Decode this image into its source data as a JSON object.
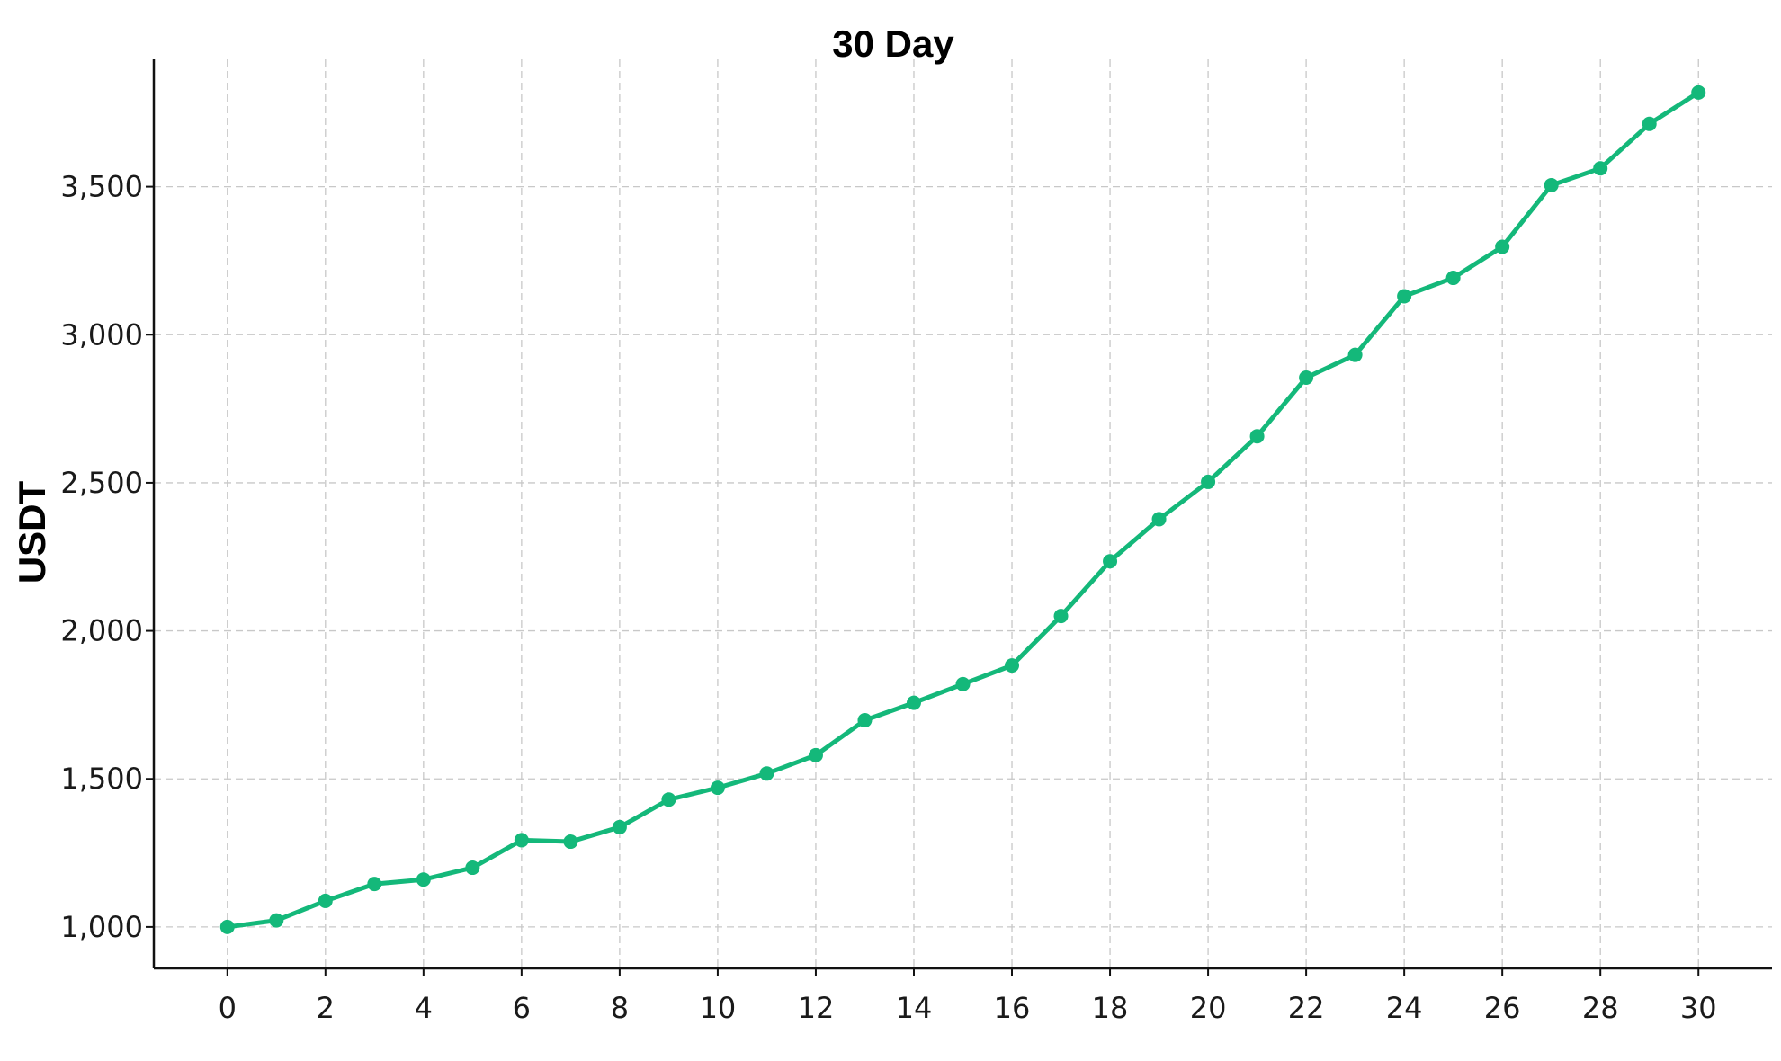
{
  "chart_data": {
    "type": "line",
    "title": "30 Day",
    "xlabel": "",
    "ylabel": "USDT",
    "xlim": [
      -1.5,
      31.5
    ],
    "ylim": [
      860,
      3930
    ],
    "xticks": [
      0,
      2,
      4,
      6,
      8,
      10,
      12,
      14,
      16,
      18,
      20,
      22,
      24,
      26,
      28,
      30
    ],
    "yticks": [
      1000,
      1500,
      2000,
      2500,
      3000,
      3500
    ],
    "ytick_labels": [
      "1,000",
      "1,500",
      "2,000",
      "2,500",
      "3,000",
      "3,500"
    ],
    "grid": true,
    "color": "#14b87a",
    "series": [
      {
        "x": [
          0,
          1,
          2,
          3,
          4,
          5,
          6,
          7,
          8,
          9,
          10,
          11,
          12,
          13,
          14,
          15,
          16,
          17,
          18,
          19,
          20,
          21,
          22,
          23,
          24,
          25,
          26,
          27,
          28,
          29,
          30
        ],
        "values": [
          1000,
          1022,
          1088,
          1145,
          1160,
          1200,
          1293,
          1288,
          1337,
          1430,
          1470,
          1518,
          1580,
          1698,
          1757,
          1820,
          1883,
          2050,
          2235,
          2377,
          2503,
          2657,
          2855,
          2932,
          3130,
          3192,
          3297,
          3505,
          3562,
          3712,
          3818
        ]
      }
    ]
  }
}
